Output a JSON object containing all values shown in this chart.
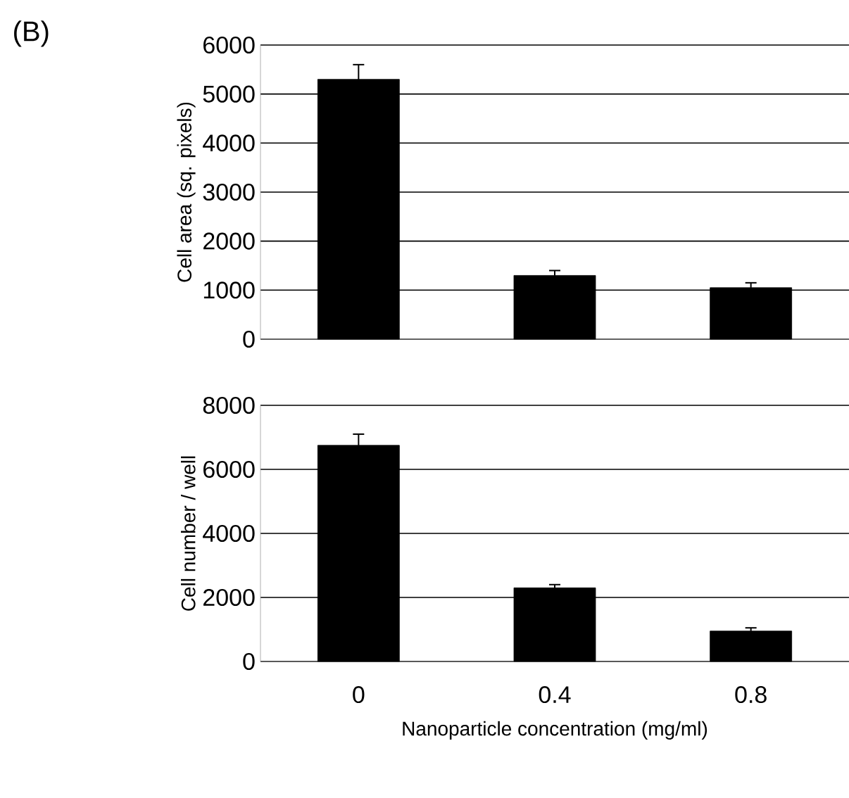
{
  "chart_data": [
    {
      "type": "bar",
      "categories": [
        "0",
        "0.4",
        "0.8"
      ],
      "values": [
        5300,
        1300,
        1050
      ],
      "errors": [
        300,
        100,
        100
      ],
      "color": "#000000",
      "ylabel": "Cell area (sq. pixels)",
      "ylim": [
        0,
        6000
      ],
      "yticks": [
        0,
        1000,
        2000,
        3000,
        4000,
        5000,
        6000
      ],
      "grid": "y",
      "tick_labels": "y",
      "annotations": [
        "(B)"
      ]
    },
    {
      "type": "bar",
      "categories": [
        "0",
        "0.4",
        "0.8"
      ],
      "values": [
        6750,
        2300,
        950
      ],
      "errors": [
        350,
        100,
        100
      ],
      "color": "#000000",
      "ylabel": "Cell number / well",
      "xlabel": "Nanoparticle concentration (mg/ml)",
      "ylim": [
        0,
        8000
      ],
      "yticks": [
        0,
        2000,
        4000,
        6000,
        8000
      ],
      "grid": "y"
    }
  ]
}
